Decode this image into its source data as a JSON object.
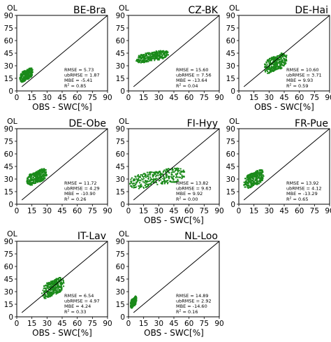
{
  "figure": {
    "xlabel": "OBS - SWC[%]",
    "corner_label": "OL",
    "tick_values": [
      0,
      15,
      30,
      45,
      60,
      75,
      90
    ],
    "point_color": "#1a8a1a",
    "line_color": "#000000"
  },
  "chart_data": [
    {
      "type": "scatter",
      "title": "BE-Bra",
      "xlabel": "OBS - SWC[%]",
      "xlim": [
        0,
        90
      ],
      "ylim": [
        0,
        90
      ],
      "cloud": {
        "x": [
          3,
          16
        ],
        "y": [
          10,
          28
        ]
      },
      "stats": {
        "RMSE": "5.73",
        "ubRMSE": "1.87",
        "MBE": "-5.41",
        "R2": "0.85"
      }
    },
    {
      "type": "scatter",
      "title": "CZ-BK",
      "xlabel": "",
      "xlim": [
        0,
        90
      ],
      "ylim": [
        0,
        90
      ],
      "cloud": {
        "x": [
          7,
          40
        ],
        "y": [
          33,
          49
        ]
      },
      "stats": {
        "RMSE": "15.60",
        "ubRMSE": "7.56",
        "MBE": "-13.64",
        "R2": "0.04"
      }
    },
    {
      "type": "scatter",
      "title": "DE-Hai",
      "xlabel": "OBS - SWC[%]",
      "xlim": [
        0,
        90
      ],
      "ylim": [
        0,
        90
      ],
      "cloud": {
        "x": [
          25,
          48
        ],
        "y": [
          20,
          46
        ]
      },
      "stats": {
        "RMSE": "10.60",
        "ubRMSE": "3.71",
        "MBE": "9.93",
        "R2": "0.59"
      }
    },
    {
      "type": "scatter",
      "title": "DE-Obe",
      "xlabel": "",
      "xlim": [
        0,
        90
      ],
      "ylim": [
        0,
        90
      ],
      "cloud": {
        "x": [
          10,
          30
        ],
        "y": [
          22,
          43
        ]
      },
      "stats": {
        "RMSE": "11.72",
        "ubRMSE": "4.29",
        "MBE": "-10.90",
        "R2": "0.26"
      }
    },
    {
      "type": "scatter",
      "title": "FI-Hyy",
      "xlabel": "OBS - SWC[%]",
      "xlim": [
        0,
        90
      ],
      "ylim": [
        0,
        90
      ],
      "cloud": {
        "x": [
          0,
          57
        ],
        "y": [
          18,
          44
        ]
      },
      "stats": {
        "RMSE": "13.82",
        "ubRMSE": "9.63",
        "MBE": "9.92",
        "R2": "0.00"
      }
    },
    {
      "type": "scatter",
      "title": "FR-Pue",
      "xlabel": "",
      "xlim": [
        0,
        90
      ],
      "ylim": [
        0,
        90
      ],
      "cloud": {
        "x": [
          5,
          25
        ],
        "y": [
          18,
          42
        ]
      },
      "stats": {
        "RMSE": "13.92",
        "ubRMSE": "4.12",
        "MBE": "-13.29",
        "R2": "0.65"
      }
    },
    {
      "type": "scatter",
      "title": "IT-Lav",
      "xlabel": "OBS - SWC[%]",
      "xlim": [
        0,
        90
      ],
      "ylim": [
        0,
        90
      ],
      "cloud": {
        "x": [
          25,
          47
        ],
        "y": [
          21,
          48
        ]
      },
      "stats": {
        "RMSE": "6.54",
        "ubRMSE": "4.97",
        "MBE": "4.24",
        "R2": "0.33"
      }
    },
    {
      "type": "scatter",
      "title": "NL-Loo",
      "xlabel": "OBS - SWC[%]",
      "xlim": [
        0,
        90
      ],
      "ylim": [
        0,
        90
      ],
      "cloud": {
        "x": [
          2,
          8
        ],
        "y": [
          10,
          25
        ]
      },
      "stats": {
        "RMSE": "14.89",
        "ubRMSE": "2.92",
        "MBE": "-14.60",
        "R2": "0.16"
      }
    }
  ]
}
